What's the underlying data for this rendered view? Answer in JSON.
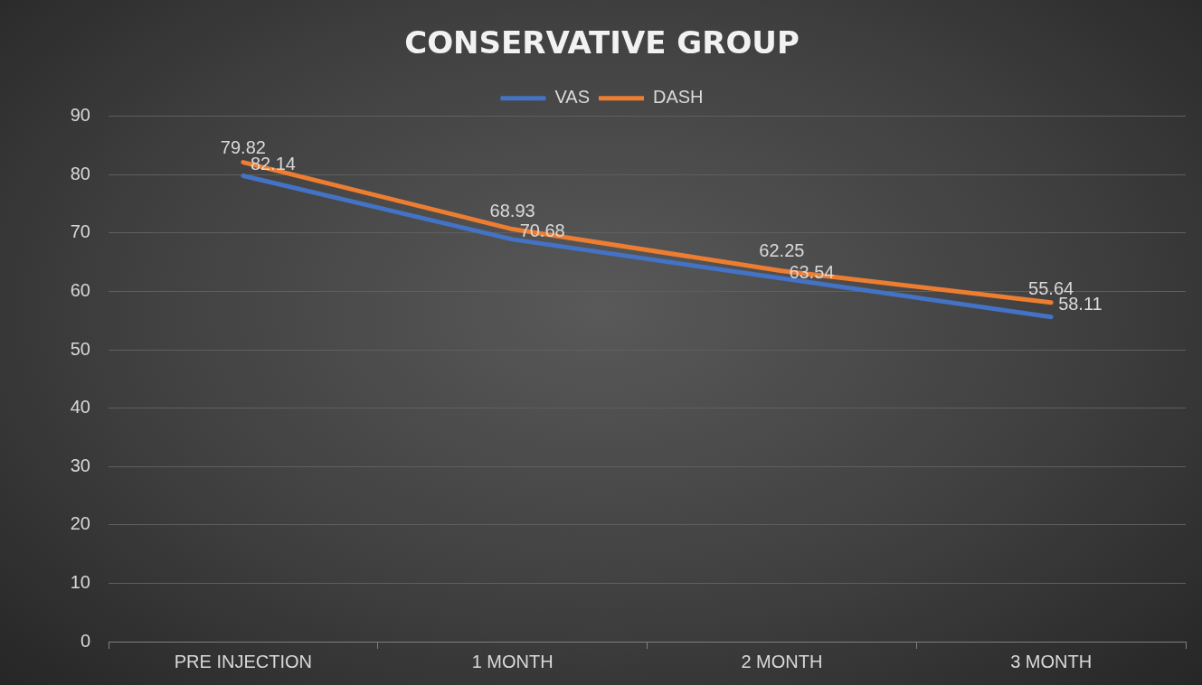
{
  "chart_data": {
    "type": "line",
    "title": "CONSERVATIVE GROUP",
    "categories": [
      "PRE INJECTION",
      "1 MONTH",
      "2 MONTH",
      "3 MONTH"
    ],
    "series": [
      {
        "name": "VAS",
        "color": "#4472c4",
        "values": [
          79.82,
          68.93,
          62.25,
          55.64
        ]
      },
      {
        "name": "DASH",
        "color": "#ed7d31",
        "values": [
          82.14,
          70.68,
          63.54,
          58.11
        ]
      }
    ],
    "ylim": [
      0,
      90
    ],
    "yticks": [
      0,
      10,
      20,
      30,
      40,
      50,
      60,
      70,
      80,
      90
    ],
    "grid": "y",
    "legend": "top",
    "marker": "none",
    "line_style": "solid",
    "data_labels": true
  }
}
